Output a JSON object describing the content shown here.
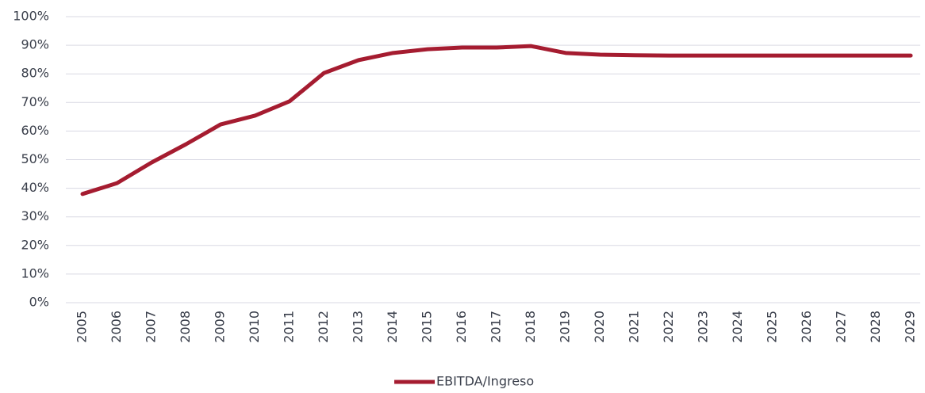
{
  "chart_data": {
    "type": "line",
    "categories": [
      "2005",
      "2006",
      "2007",
      "2008",
      "2009",
      "2010",
      "2011",
      "2012",
      "2013",
      "2014",
      "2015",
      "2016",
      "2017",
      "2018",
      "2019",
      "2020",
      "2021",
      "2022",
      "2023",
      "2024",
      "2025",
      "2026",
      "2027",
      "2028",
      "2029"
    ],
    "series": [
      {
        "name": "EBITDA/Ingreso",
        "color": "#a51c30",
        "values": [
          38,
          41.8,
          49,
          55.4,
          62.3,
          65.4,
          70.4,
          80.3,
          84.8,
          87.3,
          88.6,
          89.2,
          89.2,
          89.7,
          87.3,
          86.7,
          86.5,
          86.4,
          86.4,
          86.4,
          86.4,
          86.4,
          86.4,
          86.4,
          86.4
        ]
      }
    ],
    "ylim": [
      0,
      100
    ],
    "yticks": [
      {
        "value": 0,
        "label": "0%"
      },
      {
        "value": 10,
        "label": "10%"
      },
      {
        "value": 20,
        "label": "20%"
      },
      {
        "value": 30,
        "label": "30%"
      },
      {
        "value": 40,
        "label": "40%"
      },
      {
        "value": 50,
        "label": "50%"
      },
      {
        "value": 60,
        "label": "60%"
      },
      {
        "value": 70,
        "label": "70%"
      },
      {
        "value": 80,
        "label": "80%"
      },
      {
        "value": 90,
        "label": "90%"
      },
      {
        "value": 100,
        "label": "100%"
      }
    ],
    "grid": true,
    "legend": "bottom"
  }
}
